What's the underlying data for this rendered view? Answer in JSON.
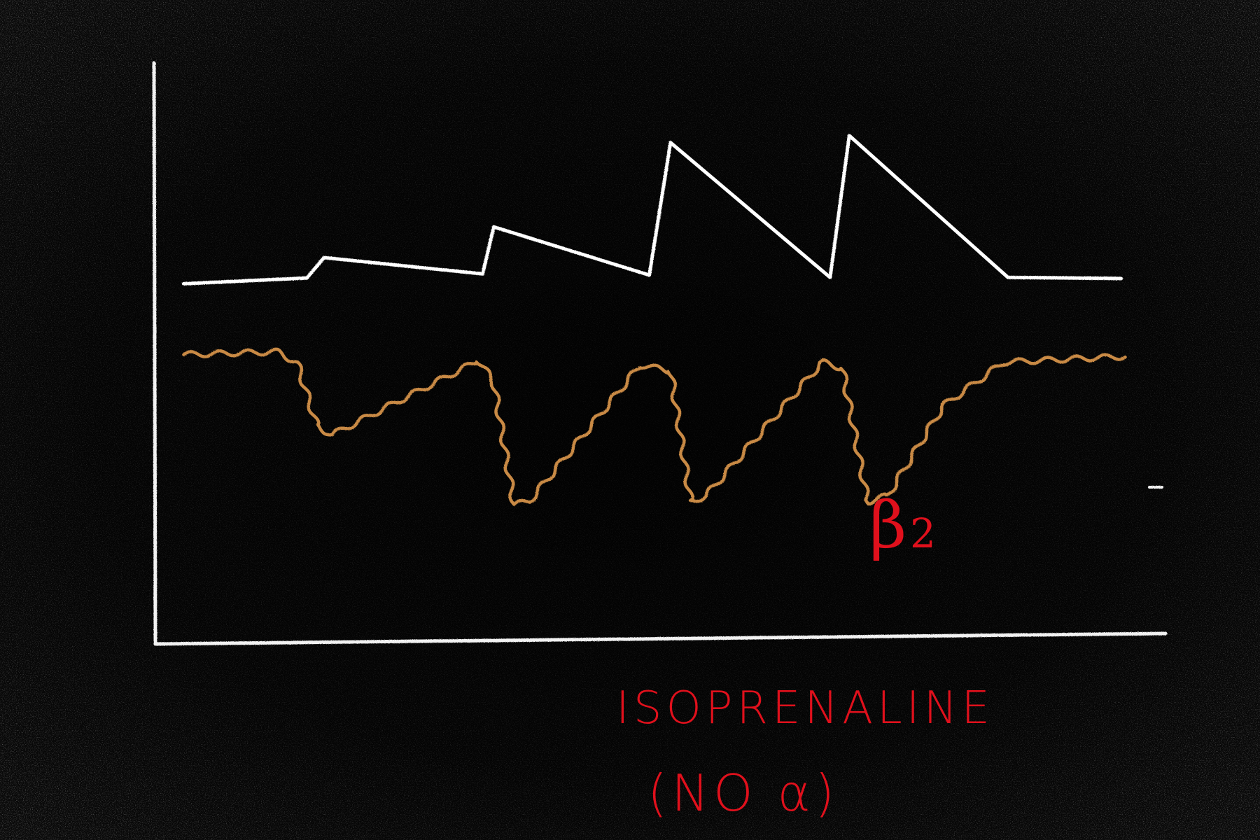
{
  "colors": {
    "background": "#0a0a0a",
    "chalk": "#f2f2f2",
    "upper_trace": "#ffffff",
    "lower_trace": "#c98a45",
    "annotation": "#e0101c"
  },
  "annotations": {
    "drug": "ISOPRENALINE",
    "note": "(NO α)",
    "receptor_symbol": "β",
    "receptor_subscript": "2"
  },
  "chart_data": {
    "type": "line",
    "xlabel": "",
    "ylabel": "",
    "xlim": [
      0,
      100
    ],
    "ylim": [
      0,
      100
    ],
    "grid": false,
    "legend": "none",
    "series": [
      {
        "color": "#ffffff",
        "style": "solid",
        "points": [
          [
            2.8,
            62.0
          ],
          [
            15.0,
            63.0
          ],
          [
            16.7,
            66.5
          ],
          [
            32.4,
            63.7
          ],
          [
            33.5,
            71.8
          ],
          [
            48.9,
            63.5
          ],
          [
            51.0,
            86.3
          ],
          [
            66.8,
            63.1
          ],
          [
            68.7,
            87.5
          ],
          [
            84.4,
            63.1
          ],
          [
            95.6,
            62.9
          ]
        ]
      },
      {
        "color": "#c98a45",
        "style": "wavy",
        "points": [
          [
            2.8,
            49.8
          ],
          [
            12.0,
            50.3
          ],
          [
            14.0,
            48.5
          ],
          [
            16.0,
            37.5
          ],
          [
            17.5,
            36.0
          ],
          [
            32.0,
            48.8
          ],
          [
            33.5,
            45.0
          ],
          [
            35.5,
            24.0
          ],
          [
            37.0,
            24.5
          ],
          [
            48.0,
            48.0
          ],
          [
            51.0,
            47.0
          ],
          [
            53.0,
            24.5
          ],
          [
            54.5,
            25.5
          ],
          [
            66.0,
            48.5
          ],
          [
            68.0,
            47.5
          ],
          [
            70.5,
            24.5
          ],
          [
            72.5,
            25.5
          ],
          [
            78.0,
            41.0
          ],
          [
            84.0,
            48.5
          ],
          [
            96.0,
            49.5
          ]
        ]
      }
    ]
  }
}
